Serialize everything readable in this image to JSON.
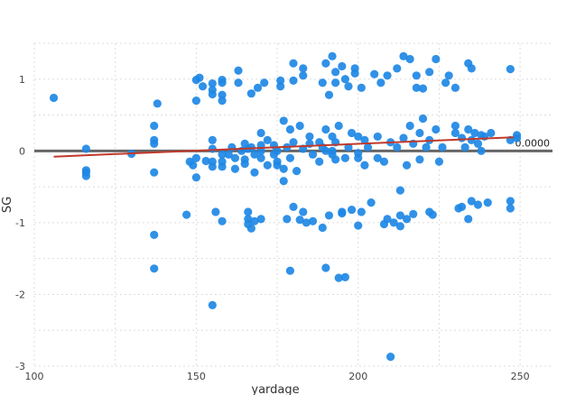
{
  "chart_data": {
    "type": "scatter",
    "title": "",
    "xlabel": "yardage",
    "ylabel": "SG",
    "xlim": [
      100,
      260
    ],
    "ylim": [
      -3,
      1.5
    ],
    "x_ticks": [
      "100",
      "150",
      "200",
      "250"
    ],
    "y_ticks": [
      "1",
      "0",
      "-1",
      "-2",
      "-3"
    ],
    "grid": true,
    "reference_line": {
      "y": 0,
      "label": "0.0000",
      "color": "#666666"
    },
    "trend_line": {
      "x": [
        106,
        248
      ],
      "y": [
        -0.08,
        0.19
      ],
      "color": "#c0392b"
    },
    "point_color": "#1e88e5",
    "series": [
      {
        "points": [
          [
            106,
            0.74
          ],
          [
            116,
            0.03
          ],
          [
            116,
            -0.27
          ],
          [
            116,
            -0.3
          ],
          [
            116,
            -0.35
          ],
          [
            130,
            -0.04
          ],
          [
            137,
            0.35
          ],
          [
            137,
            0.15
          ],
          [
            137,
            0.1
          ],
          [
            137,
            -0.3
          ],
          [
            137,
            -1.17
          ],
          [
            137,
            -1.64
          ],
          [
            138,
            0.66
          ],
          [
            147,
            -0.89
          ],
          [
            148,
            -0.15
          ],
          [
            149,
            -0.2
          ],
          [
            150,
            0.99
          ],
          [
            150,
            0.7
          ],
          [
            150,
            -0.1
          ],
          [
            150,
            -0.37
          ],
          [
            151,
            1.02
          ],
          [
            152,
            0.9
          ],
          [
            153,
            -0.14
          ],
          [
            155,
            0.94
          ],
          [
            155,
            0.85
          ],
          [
            155,
            0.79
          ],
          [
            155,
            0.15
          ],
          [
            155,
            0.03
          ],
          [
            155,
            -0.15
          ],
          [
            155,
            -0.22
          ],
          [
            155,
            -2.15
          ],
          [
            156,
            -0.85
          ],
          [
            158,
            0.99
          ],
          [
            158,
            0.95
          ],
          [
            158,
            0.78
          ],
          [
            158,
            0.7
          ],
          [
            158,
            -0.05
          ],
          [
            158,
            -0.15
          ],
          [
            158,
            -0.22
          ],
          [
            158,
            -0.98
          ],
          [
            160,
            -0.05
          ],
          [
            161,
            0.05
          ],
          [
            162,
            -0.1
          ],
          [
            162,
            -0.25
          ],
          [
            163,
            1.12
          ],
          [
            163,
            0.95
          ],
          [
            164,
            0.0
          ],
          [
            165,
            0.1
          ],
          [
            165,
            -0.12
          ],
          [
            165,
            -0.18
          ],
          [
            166,
            0.03
          ],
          [
            166,
            -0.85
          ],
          [
            166,
            -0.95
          ],
          [
            166,
            -1.02
          ],
          [
            167,
            -1.08
          ],
          [
            167,
            0.8
          ],
          [
            167,
            0.05
          ],
          [
            168,
            -0.05
          ],
          [
            168,
            -0.3
          ],
          [
            168,
            -0.98
          ],
          [
            169,
            0.88
          ],
          [
            170,
            0.25
          ],
          [
            170,
            0.08
          ],
          [
            170,
            0.0
          ],
          [
            170,
            -0.1
          ],
          [
            170,
            -0.95
          ],
          [
            171,
            0.95
          ],
          [
            172,
            0.15
          ],
          [
            172,
            -0.2
          ],
          [
            174,
            0.08
          ],
          [
            174,
            -0.05
          ],
          [
            175,
            0.0
          ],
          [
            175,
            -0.15
          ],
          [
            175,
            -0.2
          ],
          [
            176,
            0.98
          ],
          [
            176,
            0.9
          ],
          [
            177,
            0.42
          ],
          [
            177,
            -0.25
          ],
          [
            177,
            -0.42
          ],
          [
            178,
            0.05
          ],
          [
            178,
            -0.95
          ],
          [
            179,
            0.3
          ],
          [
            179,
            -0.1
          ],
          [
            179,
            -1.67
          ],
          [
            180,
            1.22
          ],
          [
            180,
            0.98
          ],
          [
            180,
            0.12
          ],
          [
            180,
            -0.78
          ],
          [
            181,
            -0.28
          ],
          [
            182,
            0.35
          ],
          [
            182,
            -0.96
          ],
          [
            183,
            1.15
          ],
          [
            183,
            1.05
          ],
          [
            183,
            0.03
          ],
          [
            183,
            -0.85
          ],
          [
            184,
            -1.0
          ],
          [
            185,
            0.2
          ],
          [
            185,
            0.1
          ],
          [
            186,
            -0.05
          ],
          [
            186,
            -0.98
          ],
          [
            188,
            0.12
          ],
          [
            188,
            -0.15
          ],
          [
            189,
            0.95
          ],
          [
            189,
            0.05
          ],
          [
            189,
            -1.07
          ],
          [
            190,
            1.22
          ],
          [
            190,
            0.3
          ],
          [
            190,
            0.0
          ],
          [
            190,
            -1.63
          ],
          [
            191,
            0.78
          ],
          [
            191,
            -0.9
          ],
          [
            192,
            1.32
          ],
          [
            192,
            0.2
          ],
          [
            192,
            0.0
          ],
          [
            192,
            -0.05
          ],
          [
            193,
            1.1
          ],
          [
            193,
            0.95
          ],
          [
            193,
            0.12
          ],
          [
            193,
            -0.12
          ],
          [
            194,
            0.35
          ],
          [
            194,
            -1.77
          ],
          [
            195,
            1.18
          ],
          [
            195,
            -0.85
          ],
          [
            195,
            -0.87
          ],
          [
            196,
            1.0
          ],
          [
            196,
            -0.1
          ],
          [
            196,
            -1.76
          ],
          [
            197,
            0.9
          ],
          [
            197,
            0.05
          ],
          [
            198,
            0.25
          ],
          [
            198,
            -0.82
          ],
          [
            199,
            1.15
          ],
          [
            199,
            1.08
          ],
          [
            200,
            0.2
          ],
          [
            200,
            -0.03
          ],
          [
            200,
            -0.1
          ],
          [
            200,
            -1.04
          ],
          [
            201,
            0.88
          ],
          [
            201,
            -0.85
          ],
          [
            202,
            0.15
          ],
          [
            202,
            -0.2
          ],
          [
            203,
            0.05
          ],
          [
            204,
            -0.72
          ],
          [
            205,
            1.07
          ],
          [
            206,
            0.2
          ],
          [
            206,
            -0.1
          ],
          [
            207,
            0.95
          ],
          [
            208,
            -0.15
          ],
          [
            208,
            -1.02
          ],
          [
            209,
            1.05
          ],
          [
            209,
            -0.95
          ],
          [
            210,
            -2.87
          ],
          [
            210,
            0.12
          ],
          [
            211,
            -1.0
          ],
          [
            212,
            1.15
          ],
          [
            212,
            0.05
          ],
          [
            213,
            -0.55
          ],
          [
            213,
            -0.9
          ],
          [
            213,
            -1.05
          ],
          [
            214,
            1.32
          ],
          [
            214,
            0.18
          ],
          [
            215,
            -0.2
          ],
          [
            215,
            -0.95
          ],
          [
            216,
            1.28
          ],
          [
            216,
            0.35
          ],
          [
            217,
            0.1
          ],
          [
            217,
            -0.88
          ],
          [
            218,
            1.05
          ],
          [
            218,
            0.88
          ],
          [
            219,
            0.25
          ],
          [
            219,
            -0.12
          ],
          [
            220,
            0.87
          ],
          [
            220,
            0.45
          ],
          [
            221,
            0.05
          ],
          [
            222,
            1.1
          ],
          [
            222,
            0.15
          ],
          [
            222,
            -0.85
          ],
          [
            223,
            -0.89
          ],
          [
            224,
            1.28
          ],
          [
            224,
            0.3
          ],
          [
            225,
            -0.15
          ],
          [
            226,
            0.05
          ],
          [
            227,
            0.95
          ],
          [
            228,
            1.05
          ],
          [
            230,
            0.35
          ],
          [
            230,
            0.25
          ],
          [
            230,
            0.88
          ],
          [
            231,
            -0.8
          ],
          [
            232,
            0.18
          ],
          [
            232,
            -0.78
          ],
          [
            233,
            0.05
          ],
          [
            234,
            1.22
          ],
          [
            234,
            0.3
          ],
          [
            234,
            -0.95
          ],
          [
            235,
            1.15
          ],
          [
            235,
            0.15
          ],
          [
            235,
            -0.7
          ],
          [
            236,
            0.25
          ],
          [
            237,
            0.1
          ],
          [
            237,
            -0.75
          ],
          [
            238,
            0.0
          ],
          [
            238,
            0.22
          ],
          [
            239,
            0.2
          ],
          [
            240,
            -0.72
          ],
          [
            241,
            0.25
          ],
          [
            247,
            1.14
          ],
          [
            247,
            0.15
          ],
          [
            247,
            -0.7
          ],
          [
            247,
            -0.8
          ],
          [
            249,
            0.22
          ],
          [
            249,
            0.18
          ]
        ]
      }
    ]
  }
}
